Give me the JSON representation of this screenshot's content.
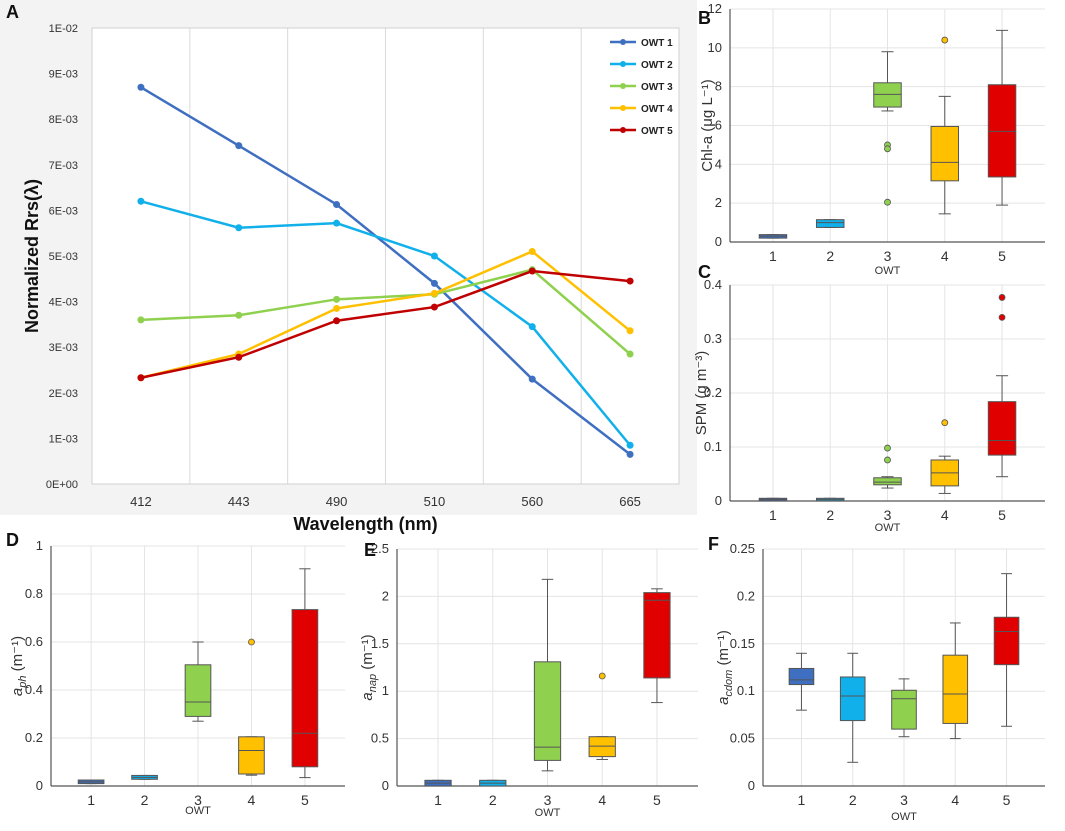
{
  "panel_labels": [
    "A",
    "B",
    "C",
    "D",
    "E",
    "F"
  ],
  "colors": {
    "owt1": "#3f6fc0",
    "owt2": "#11b0ea",
    "owt3": "#8fd14f",
    "owt4": "#ffc000",
    "owt5": "#e00000",
    "owt5_line": "#c00000",
    "grid": "#e4e4e4",
    "axis": "#444444"
  },
  "chart_data": [
    {
      "id": "A",
      "type": "line",
      "xlabel": "Wavelength (nm)",
      "ylabel": "Normalized Rrs(λ)",
      "categories": [
        "412",
        "443",
        "490",
        "510",
        "560",
        "665"
      ],
      "yticks": [
        "0E+00",
        "1E-03",
        "2E-03",
        "3E-03",
        "4E-03",
        "5E-03",
        "6E-03",
        "7E-03",
        "8E-03",
        "9E-03",
        "1E-02"
      ],
      "ylim": [
        0,
        0.01
      ],
      "legend_position": "top-right",
      "series": [
        {
          "name": "OWT 1",
          "values": [
            0.0087,
            0.00742,
            0.00613,
            0.0044,
            0.0023,
            0.00065
          ]
        },
        {
          "name": "OWT 2",
          "values": [
            0.0062,
            0.00562,
            0.00572,
            0.005,
            0.00345,
            0.00085
          ]
        },
        {
          "name": "OWT 3",
          "values": [
            0.0036,
            0.0037,
            0.00405,
            0.00416,
            0.0047,
            0.00285
          ]
        },
        {
          "name": "OWT 4",
          "values": [
            0.00233,
            0.00285,
            0.00385,
            0.00418,
            0.0051,
            0.00336
          ]
        },
        {
          "name": "OWT 5",
          "values": [
            0.00233,
            0.00278,
            0.00358,
            0.00388,
            0.00467,
            0.00445
          ]
        }
      ]
    },
    {
      "id": "B",
      "type": "box",
      "xlabel": "OWT",
      "ylabel": "Chl-a (μg L⁻¹)",
      "categories": [
        "1",
        "2",
        "3",
        "4",
        "5"
      ],
      "ylim": [
        0,
        12
      ],
      "yticks": [
        "0",
        "2",
        "4",
        "6",
        "8",
        "10",
        "12"
      ],
      "boxes": [
        {
          "q1": 0.2,
          "median": 0.3,
          "q3": 0.38,
          "whisker_low": 0.2,
          "whisker_high": 0.38,
          "outliers": []
        },
        {
          "q1": 0.75,
          "median": 1.0,
          "q3": 1.15,
          "whisker_low": 0.75,
          "whisker_high": 1.15,
          "outliers": []
        },
        {
          "q1": 6.95,
          "median": 7.6,
          "q3": 8.2,
          "whisker_low": 6.75,
          "whisker_high": 9.8,
          "outliers": [
            5.0,
            4.8,
            2.05
          ]
        },
        {
          "q1": 3.15,
          "median": 4.1,
          "q3": 5.95,
          "whisker_low": 1.45,
          "whisker_high": 7.5,
          "outliers": [
            10.4
          ]
        },
        {
          "q1": 3.35,
          "median": 5.7,
          "q3": 8.1,
          "whisker_low": 1.9,
          "whisker_high": 10.9,
          "outliers": []
        }
      ]
    },
    {
      "id": "C",
      "type": "box",
      "xlabel": "OWT",
      "ylabel": "SPM (g m⁻³)",
      "categories": [
        "1",
        "2",
        "3",
        "4",
        "5"
      ],
      "ylim": [
        0,
        0.4
      ],
      "yticks": [
        "0",
        "0.1",
        "0.2",
        "0.3",
        "0.4"
      ],
      "boxes": [
        {
          "q1": 0.002,
          "median": 0.003,
          "q3": 0.005,
          "whisker_low": 0.002,
          "whisker_high": 0.005,
          "outliers": []
        },
        {
          "q1": 0.002,
          "median": 0.003,
          "q3": 0.005,
          "whisker_low": 0.002,
          "whisker_high": 0.005,
          "outliers": []
        },
        {
          "q1": 0.03,
          "median": 0.035,
          "q3": 0.043,
          "whisker_low": 0.024,
          "whisker_high": 0.045,
          "outliers": [
            0.098,
            0.076
          ]
        },
        {
          "q1": 0.028,
          "median": 0.052,
          "q3": 0.076,
          "whisker_low": 0.014,
          "whisker_high": 0.083,
          "outliers": [
            0.145
          ]
        },
        {
          "q1": 0.085,
          "median": 0.112,
          "q3": 0.184,
          "whisker_low": 0.045,
          "whisker_high": 0.232,
          "outliers": [
            0.377,
            0.34
          ]
        }
      ]
    },
    {
      "id": "D",
      "type": "box",
      "xlabel": "OWT",
      "ylabel": "a_ph (m⁻¹)",
      "categories": [
        "1",
        "2",
        "3",
        "4",
        "5"
      ],
      "ylim": [
        0,
        1
      ],
      "yticks": [
        "0",
        "0.2",
        "0.4",
        "0.6",
        "0.8",
        "1"
      ],
      "boxes": [
        {
          "q1": 0.01,
          "median": 0.017,
          "q3": 0.025,
          "whisker_low": 0.01,
          "whisker_high": 0.025,
          "outliers": []
        },
        {
          "q1": 0.028,
          "median": 0.036,
          "q3": 0.044,
          "whisker_low": 0.028,
          "whisker_high": 0.044,
          "outliers": []
        },
        {
          "q1": 0.29,
          "median": 0.35,
          "q3": 0.505,
          "whisker_low": 0.27,
          "whisker_high": 0.6,
          "outliers": []
        },
        {
          "q1": 0.05,
          "median": 0.148,
          "q3": 0.205,
          "whisker_low": 0.045,
          "whisker_high": 0.205,
          "outliers": [
            0.6
          ]
        },
        {
          "q1": 0.08,
          "median": 0.22,
          "q3": 0.735,
          "whisker_low": 0.035,
          "whisker_high": 0.905,
          "outliers": []
        }
      ]
    },
    {
      "id": "E",
      "type": "box",
      "xlabel": "OWT",
      "ylabel": "a_nap (m⁻¹)",
      "categories": [
        "1",
        "2",
        "3",
        "4",
        "5"
      ],
      "ylim": [
        0,
        2.5
      ],
      "yticks": [
        "0",
        "0.5",
        "1",
        "1.5",
        "2",
        "2.5"
      ],
      "boxes": [
        {
          "q1": 0.0,
          "median": 0.03,
          "q3": 0.06,
          "whisker_low": 0.0,
          "whisker_high": 0.06,
          "outliers": []
        },
        {
          "q1": 0.0,
          "median": 0.03,
          "q3": 0.06,
          "whisker_low": 0.0,
          "whisker_high": 0.06,
          "outliers": []
        },
        {
          "q1": 0.27,
          "median": 0.41,
          "q3": 1.31,
          "whisker_low": 0.16,
          "whisker_high": 2.18,
          "outliers": []
        },
        {
          "q1": 0.31,
          "median": 0.42,
          "q3": 0.52,
          "whisker_low": 0.28,
          "whisker_high": 0.52,
          "outliers": [
            1.16
          ]
        },
        {
          "q1": 1.14,
          "median": 1.96,
          "q3": 2.04,
          "whisker_low": 0.88,
          "whisker_high": 2.08,
          "outliers": []
        }
      ]
    },
    {
      "id": "F",
      "type": "box",
      "xlabel": "OWT",
      "ylabel": "a_cdom (m⁻¹)",
      "categories": [
        "1",
        "2",
        "3",
        "4",
        "5"
      ],
      "ylim": [
        0,
        0.25
      ],
      "yticks": [
        "0",
        "0.05",
        "0.1",
        "0.15",
        "0.2",
        "0.25"
      ],
      "boxes": [
        {
          "q1": 0.107,
          "median": 0.112,
          "q3": 0.124,
          "whisker_low": 0.08,
          "whisker_high": 0.14,
          "outliers": []
        },
        {
          "q1": 0.069,
          "median": 0.095,
          "q3": 0.115,
          "whisker_low": 0.025,
          "whisker_high": 0.14,
          "outliers": []
        },
        {
          "q1": 0.06,
          "median": 0.092,
          "q3": 0.101,
          "whisker_low": 0.052,
          "whisker_high": 0.113,
          "outliers": []
        },
        {
          "q1": 0.066,
          "median": 0.097,
          "q3": 0.138,
          "whisker_low": 0.05,
          "whisker_high": 0.172,
          "outliers": []
        },
        {
          "q1": 0.128,
          "median": 0.163,
          "q3": 0.178,
          "whisker_low": 0.063,
          "whisker_high": 0.224,
          "outliers": []
        }
      ]
    }
  ]
}
